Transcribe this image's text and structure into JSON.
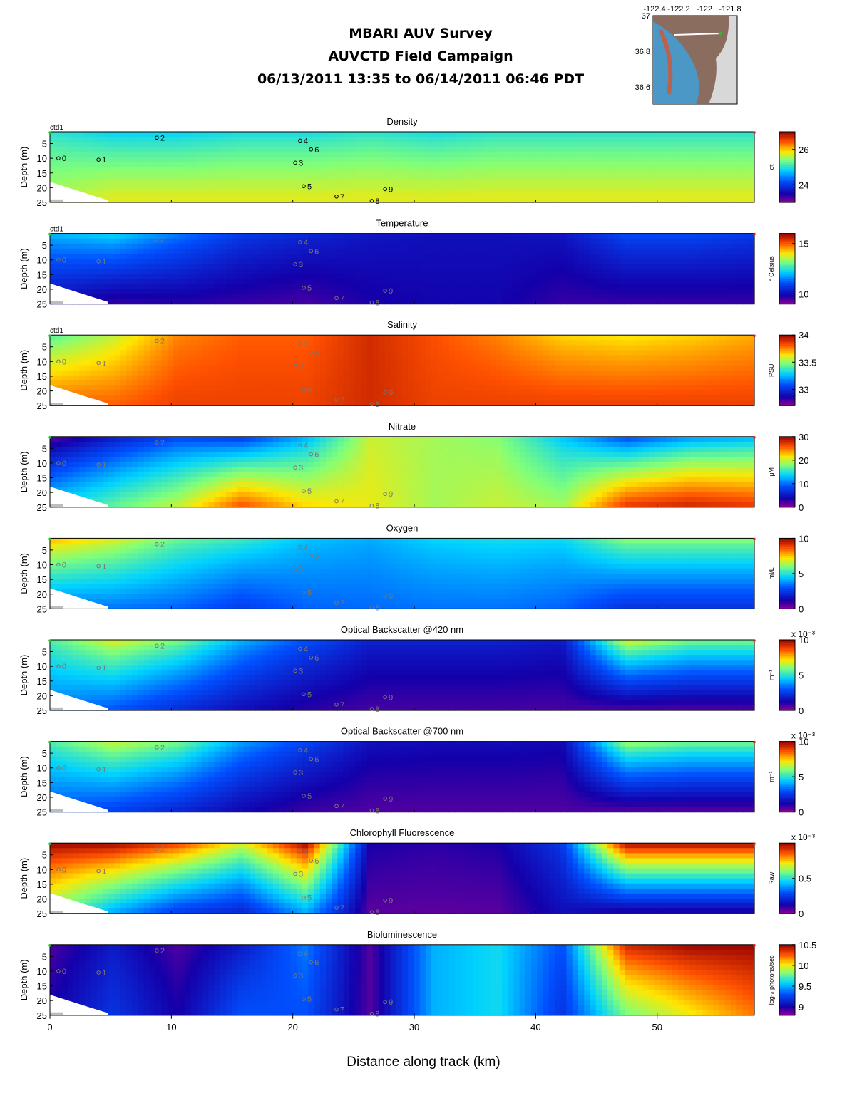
{
  "header": {
    "line1": "MBARI AUV Survey",
    "line2": "AUVCTD Field Campaign",
    "line3": "06/13/2011 13:35  to 06/14/2011 06:46 PDT"
  },
  "inset_map": {
    "lon_ticks": [
      "-122.4",
      "-122.2",
      "-122",
      "-121.8"
    ],
    "lat_ticks": [
      "37",
      "36.8",
      "36.6"
    ]
  },
  "colors": {
    "white": "#ffffff",
    "black": "#000000",
    "track_label": "#777777"
  },
  "chart_data": {
    "type": "heatmap",
    "xlabel": "Distance along track (km)",
    "x_ticks": [
      0,
      10,
      20,
      30,
      40,
      50
    ],
    "xlim": [
      0,
      58
    ],
    "depth_ticks": [
      5,
      10,
      15,
      20,
      25
    ],
    "ylim": [
      25,
      1
    ],
    "ylabel": "Depth (m)",
    "vehicle_label": "ctd1",
    "profile_markers": [
      {
        "label": "0",
        "x": 0.7,
        "depth": 10
      },
      {
        "label": "1",
        "x": 4.0,
        "depth": 10.5
      },
      {
        "label": "2",
        "x": 8.8,
        "depth": 3
      },
      {
        "label": "3",
        "x": 20.2,
        "depth": 11.5
      },
      {
        "label": "4",
        "x": 20.6,
        "depth": 4
      },
      {
        "label": "5",
        "x": 20.9,
        "depth": 19.5
      },
      {
        "label": "6",
        "x": 21.5,
        "depth": 7
      },
      {
        "label": "7",
        "x": 23.6,
        "depth": 23
      },
      {
        "label": "8",
        "x": 26.5,
        "depth": 24.5
      },
      {
        "label": "9",
        "x": 27.6,
        "depth": 20.5
      }
    ],
    "panels": [
      {
        "title": "Density",
        "unit": "σt",
        "clim": [
          23,
          27
        ],
        "ticks": [
          "26",
          "24"
        ],
        "tick_values": [
          26,
          24
        ],
        "surface": [
          25.0,
          24.8,
          24.8,
          24.9,
          24.9,
          25.0,
          24.9,
          25.0,
          25.0,
          25.0,
          25.0,
          25.0
        ],
        "bottom": [
          25.6,
          25.8,
          25.8,
          25.8,
          25.8,
          25.8,
          25.8,
          25.8,
          25.8,
          25.8,
          25.8,
          25.8
        ]
      },
      {
        "title": "Temperature",
        "unit": "° Celsius",
        "clim": [
          9,
          16
        ],
        "ticks": [
          "15",
          "10"
        ],
        "tick_values": [
          15,
          10
        ],
        "surface": [
          12.0,
          12.3,
          11.5,
          10.8,
          10.5,
          10.2,
          10.1,
          10.1,
          10.2,
          11.0,
          11.0,
          10.8
        ],
        "bottom": [
          10.0,
          9.6,
          9.7,
          9.6,
          9.5,
          9.8,
          9.9,
          9.9,
          9.6,
          9.6,
          9.6,
          9.6
        ]
      },
      {
        "title": "Salinity",
        "unit": "PSU",
        "clim": [
          32.7,
          34.0
        ],
        "ticks": [
          "34",
          "33.5",
          "33"
        ],
        "tick_values": [
          34,
          33.5,
          33
        ],
        "surface": [
          33.4,
          33.55,
          33.75,
          33.8,
          33.8,
          33.9,
          33.82,
          33.75,
          33.65,
          33.62,
          33.65,
          33.7
        ],
        "bottom": [
          33.8,
          33.8,
          33.85,
          33.85,
          33.85,
          33.9,
          33.85,
          33.85,
          33.85,
          33.85,
          33.85,
          33.85
        ]
      },
      {
        "title": "Nitrate",
        "unit": "μM",
        "clim": [
          0,
          30
        ],
        "ticks": [
          "30",
          "20",
          "10",
          "0"
        ],
        "tick_values": [
          30,
          20,
          10,
          0
        ],
        "surface": [
          1,
          5,
          8,
          7,
          12,
          20,
          19,
          18,
          13,
          8,
          11,
          12
        ],
        "bottom": [
          14,
          17,
          20,
          26,
          22,
          21,
          19,
          20,
          19,
          27,
          28,
          27
        ]
      },
      {
        "title": "Oxygen",
        "unit": "ml/L",
        "clim": [
          0,
          10
        ],
        "ticks": [
          "10",
          "5",
          "0"
        ],
        "tick_values": [
          10,
          5,
          0
        ],
        "surface": [
          7.8,
          7.0,
          5.8,
          5.3,
          4.4,
          4.1,
          4.6,
          4.8,
          4.7,
          6.2,
          6.2,
          6.2
        ],
        "bottom": [
          3.4,
          3.4,
          3.2,
          2.6,
          3.2,
          3.3,
          3.4,
          3.4,
          3.2,
          2.3,
          2.3,
          2.3
        ]
      },
      {
        "title": "Optical Backscatter @420 nm",
        "unit": "m⁻¹",
        "multiplier": "x 10⁻³",
        "clim": [
          0,
          10
        ],
        "ticks": [
          "10",
          "5",
          "0"
        ],
        "tick_values": [
          10,
          5,
          0
        ],
        "surface": [
          5.5,
          7.0,
          6.0,
          4.2,
          3.0,
          2.0,
          2.0,
          2.0,
          1.8,
          7.0,
          6.0,
          6.0
        ],
        "bottom": [
          3.5,
          3.0,
          2.2,
          1.5,
          1.0,
          0.7,
          0.7,
          0.7,
          0.7,
          0.6,
          0.6,
          0.6
        ]
      },
      {
        "title": "Optical Backscatter @700 nm",
        "unit": "m⁻¹",
        "multiplier": "x 10⁻³",
        "clim": [
          0,
          10
        ],
        "ticks": [
          "10",
          "5",
          "0"
        ],
        "tick_values": [
          10,
          5,
          0
        ],
        "surface": [
          5.5,
          6.8,
          6.0,
          4.0,
          2.8,
          1.6,
          1.5,
          1.5,
          1.4,
          6.5,
          6.0,
          6.0
        ],
        "bottom": [
          3.0,
          2.6,
          2.0,
          1.3,
          0.8,
          0.6,
          0.6,
          0.6,
          0.6,
          0.5,
          0.5,
          0.5
        ]
      },
      {
        "title": "Chlorophyll Fluorescence",
        "unit": "Raw",
        "multiplier": "x 10⁻³",
        "clim": [
          0,
          1
        ],
        "ticks": [
          "0.5",
          "0"
        ],
        "tick_values": [
          0.5,
          0
        ],
        "surface": [
          1.0,
          1.0,
          0.9,
          0.7,
          1.0,
          0.12,
          0.1,
          0.12,
          0.25,
          1.0,
          1.0,
          1.0
        ],
        "bottom": [
          0.6,
          0.4,
          0.25,
          0.2,
          0.4,
          0.05,
          0.05,
          0.05,
          0.15,
          0.1,
          0.1,
          0.1
        ]
      },
      {
        "title": "Bioluminescence",
        "unit": "log₁₀ photons/sec",
        "clim": [
          8.8,
          10.5
        ],
        "ticks": [
          "10.5",
          "10",
          "9.5",
          "9"
        ],
        "tick_values": [
          10.5,
          10,
          9.5,
          9
        ],
        "surface": [
          8.9,
          9.1,
          8.9,
          9.1,
          9.4,
          8.9,
          9.5,
          9.6,
          9.3,
          10.4,
          10.5,
          10.5
        ],
        "bottom": [
          9.0,
          9.2,
          9.0,
          9.3,
          9.3,
          8.9,
          9.5,
          9.6,
          9.2,
          9.8,
          10.0,
          10.2
        ]
      }
    ]
  }
}
